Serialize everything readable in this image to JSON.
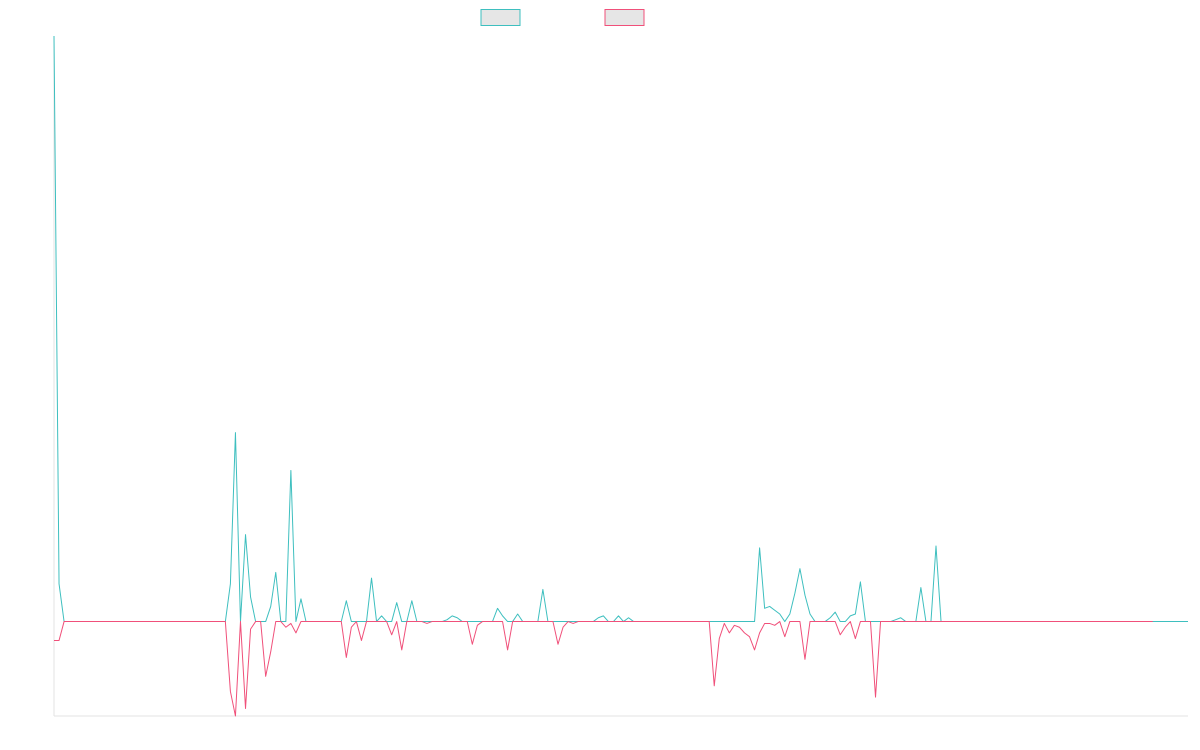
{
  "chart_data": {
    "type": "line",
    "title": "",
    "xlabel": "",
    "ylabel": "",
    "ylim": [
      -5,
      31
    ],
    "grid": false,
    "legend_position": "top-center",
    "colors": {
      "series_a": "#3ebfbf",
      "series_b": "#f0507a",
      "axis": "#e3e3e3",
      "legend_fill": "#e6e6e6"
    },
    "series": [
      {
        "name": "",
        "color": "#3ebfbf",
        "values": [
          31,
          2,
          0,
          0,
          0,
          0,
          0,
          0,
          0,
          0,
          0,
          0,
          0,
          0,
          0,
          0,
          0,
          0,
          0,
          0,
          0,
          0,
          0,
          0,
          0,
          0,
          0,
          0,
          0,
          0,
          0,
          0,
          0,
          0,
          0,
          2,
          10,
          0,
          4.6,
          1.3,
          0,
          0,
          0,
          0.8,
          2.6,
          0,
          0,
          8,
          0,
          1.2,
          0,
          0,
          0,
          0,
          0,
          0,
          0,
          0,
          1.1,
          0,
          0,
          0,
          0,
          2.3,
          0,
          0.3,
          0,
          0,
          1,
          0,
          0,
          1.1,
          0,
          0,
          0,
          0,
          0,
          0,
          0.1,
          0.3,
          0.2,
          0,
          0,
          0,
          0,
          0,
          0,
          0,
          0.7,
          0.3,
          0,
          0,
          0.4,
          0,
          0,
          0,
          0,
          1.7,
          0,
          0,
          0,
          0,
          0,
          0,
          0,
          0,
          0,
          0,
          0.2,
          0.3,
          0,
          0,
          0.3,
          0,
          0.2,
          0,
          0,
          0,
          0,
          0,
          0,
          0,
          0,
          0,
          0,
          0,
          0,
          0,
          0,
          0,
          0,
          0,
          0,
          0,
          0,
          0,
          0,
          0,
          0,
          0,
          3.9,
          0.7,
          0.8,
          0.6,
          0.4,
          0,
          0.4,
          1.5,
          2.8,
          1.4,
          0.4,
          0,
          0,
          0,
          0.2,
          0.5,
          0,
          0,
          0.3,
          0.4,
          2.1,
          0,
          0,
          0,
          0,
          0,
          0,
          0.1,
          0.2,
          0,
          0,
          0,
          1.8,
          0,
          0,
          4,
          0,
          0,
          0,
          0,
          0,
          0,
          0,
          0,
          0,
          0,
          0,
          0,
          0,
          0,
          0,
          0,
          0,
          0,
          0,
          0,
          0,
          0,
          0,
          0,
          0,
          0,
          0,
          0,
          0,
          0,
          0,
          0,
          0,
          0,
          0,
          0,
          0,
          0,
          0,
          0,
          0,
          0,
          0,
          0,
          0,
          0,
          0,
          0,
          0,
          0
        ]
      },
      {
        "name": "",
        "color": "#f0507a",
        "values": [
          -1,
          -1,
          0,
          0,
          0,
          0,
          0,
          0,
          0,
          0,
          0,
          0,
          0,
          0,
          0,
          0,
          0,
          0,
          0,
          0,
          0,
          0,
          0,
          0,
          0,
          0,
          0,
          0,
          0,
          0,
          0,
          0,
          0,
          0,
          0,
          -3.7,
          -5,
          0,
          -4.6,
          -0.4,
          0,
          0,
          -2.9,
          -1.6,
          0,
          0,
          -0.3,
          -0.1,
          -0.6,
          0,
          0,
          0,
          0,
          0,
          0,
          0,
          0,
          0,
          -1.9,
          -0.3,
          0,
          -1,
          0,
          0,
          0,
          0,
          0,
          -0.7,
          0,
          -1.5,
          0,
          0,
          0,
          0,
          -0.1,
          0,
          0,
          0,
          0,
          0,
          0,
          0,
          0,
          -1.2,
          -0.2,
          0,
          0,
          0,
          0,
          0,
          -1.5,
          0,
          0,
          0,
          0,
          0,
          0,
          0,
          0,
          0,
          -1.2,
          -0.3,
          0,
          -0.1,
          0,
          0,
          0,
          0,
          0,
          0,
          0,
          0,
          0,
          0,
          0,
          0,
          0,
          0,
          0,
          0,
          0,
          0,
          0,
          0,
          0,
          0,
          0,
          0,
          0,
          0,
          0,
          -3.4,
          -0.9,
          -0.1,
          -0.6,
          -0.2,
          -0.3,
          -0.6,
          -0.8,
          -1.5,
          -0.6,
          -0.1,
          -0.1,
          -0.2,
          0,
          -0.8,
          0,
          0,
          0,
          -2,
          0,
          0,
          0,
          0,
          0,
          0,
          -0.7,
          -0.3,
          0,
          -0.9,
          0,
          0,
          0,
          -4,
          0,
          0,
          0,
          0,
          0,
          0,
          0,
          0,
          0,
          0,
          0,
          0,
          0,
          0,
          0,
          0,
          0,
          0,
          0,
          0,
          0,
          0,
          0,
          0,
          0,
          0,
          0,
          0,
          0,
          0,
          0,
          0,
          0,
          0,
          0,
          0,
          0,
          0,
          0,
          0,
          0,
          0,
          0,
          0,
          0,
          0,
          0,
          0,
          0,
          0,
          0,
          0,
          0,
          0,
          0
        ]
      }
    ]
  }
}
